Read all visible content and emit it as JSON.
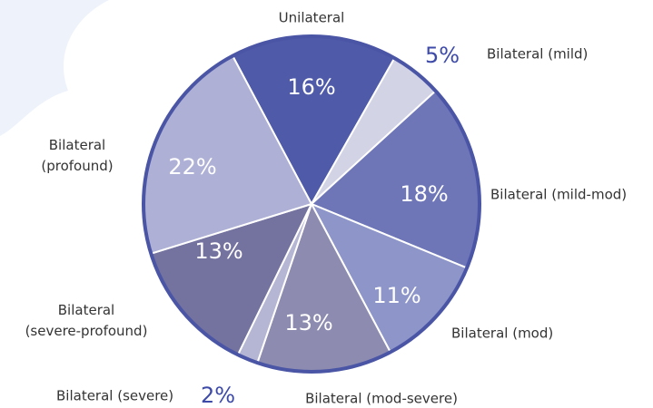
{
  "chart_data": {
    "type": "pie",
    "categories": [
      "Unilateral",
      "Bilateral (mild)",
      "Bilateral (mild-mod)",
      "Bilateral (mod)",
      "Bilateral (mod-severe)",
      "Bilateral (severe)",
      "Bilateral (severe-profound)",
      "Bilateral (profound)"
    ],
    "values": [
      16,
      5,
      18,
      11,
      13,
      2,
      13,
      22
    ],
    "value_labels": [
      "16%",
      "5%",
      "18%",
      "11%",
      "13%",
      "2%",
      "13%",
      "22%"
    ],
    "colors": [
      "#4f5aa8",
      "#d3d3e6",
      "#6e76b8",
      "#8e95c9",
      "#8d8cb0",
      "#b5b5d4",
      "#74729f",
      "#aeb0d6"
    ]
  }
}
